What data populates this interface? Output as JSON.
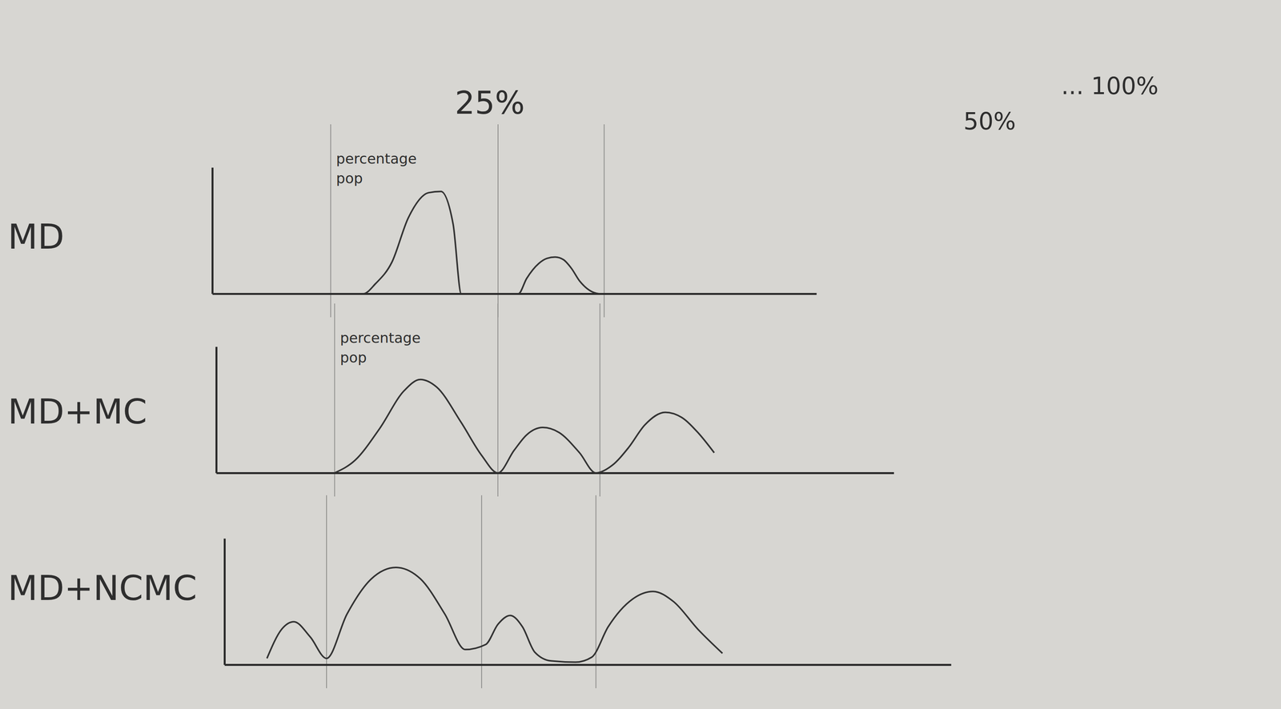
{
  "chart_data": [
    {
      "type": "line",
      "title": "MD",
      "ylabel": "percentage pop",
      "color": "#333333",
      "annotations": [
        "25%",
        "50%",
        "... 100%"
      ],
      "x": [
        0,
        18.5,
        20,
        22,
        24,
        26.5,
        28,
        29.5,
        30.5,
        37.5,
        38.5,
        40,
        41,
        42,
        43,
        44,
        45,
        47.5,
        74
      ],
      "values": [
        0,
        0,
        8,
        25,
        60,
        80,
        81,
        55,
        0,
        0,
        12,
        24,
        28,
        29,
        27,
        20,
        10,
        0,
        0
      ],
      "xlim": [
        0,
        74
      ],
      "ylim": [
        0,
        100
      ],
      "xticks": [],
      "yticks": [],
      "vlines": [
        14.5,
        35,
        48
      ],
      "tick_labels": false
    },
    {
      "type": "line",
      "title": "MD+MC",
      "ylabel": "percentage pop",
      "color": "#333333",
      "x": [
        14.5,
        17,
        20,
        23,
        25,
        27,
        30,
        32.5,
        34.5,
        36.5,
        38,
        40,
        42,
        44.5,
        46.5,
        48.5,
        50.5,
        52.5,
        55,
        57,
        59,
        61
      ],
      "values": [
        0,
        10,
        35,
        65,
        74,
        68,
        40,
        14,
        0,
        18,
        30,
        36,
        32,
        16,
        0,
        6,
        20,
        38,
        48,
        44,
        32,
        16
      ],
      "xlim": [
        0,
        83
      ],
      "ylim": [
        0,
        100
      ],
      "xticks": [],
      "yticks": [],
      "vlines": [
        14.5,
        34.5,
        47
      ],
      "tick_labels": false
    },
    {
      "type": "line",
      "title": "MD+NCMC",
      "color": "#333333",
      "x": [
        5.2,
        7,
        8.5,
        10.5,
        12.5,
        15,
        18,
        21,
        24,
        27,
        29.5,
        32,
        33.5,
        35,
        36.5,
        38,
        40,
        43,
        45,
        47,
        50,
        52.5,
        55,
        58,
        61
      ],
      "values": [
        5,
        28,
        34,
        22,
        5,
        40,
        68,
        77,
        68,
        40,
        12,
        16,
        32,
        39,
        30,
        10,
        3,
        2,
        6,
        30,
        52,
        58,
        50,
        28,
        9
      ],
      "xlim": [
        0,
        89
      ],
      "ylim": [
        0,
        100
      ],
      "xticks": [],
      "yticks": [],
      "vlines": [
        12.5,
        31.5,
        45.5
      ],
      "tick_labels": false
    }
  ]
}
